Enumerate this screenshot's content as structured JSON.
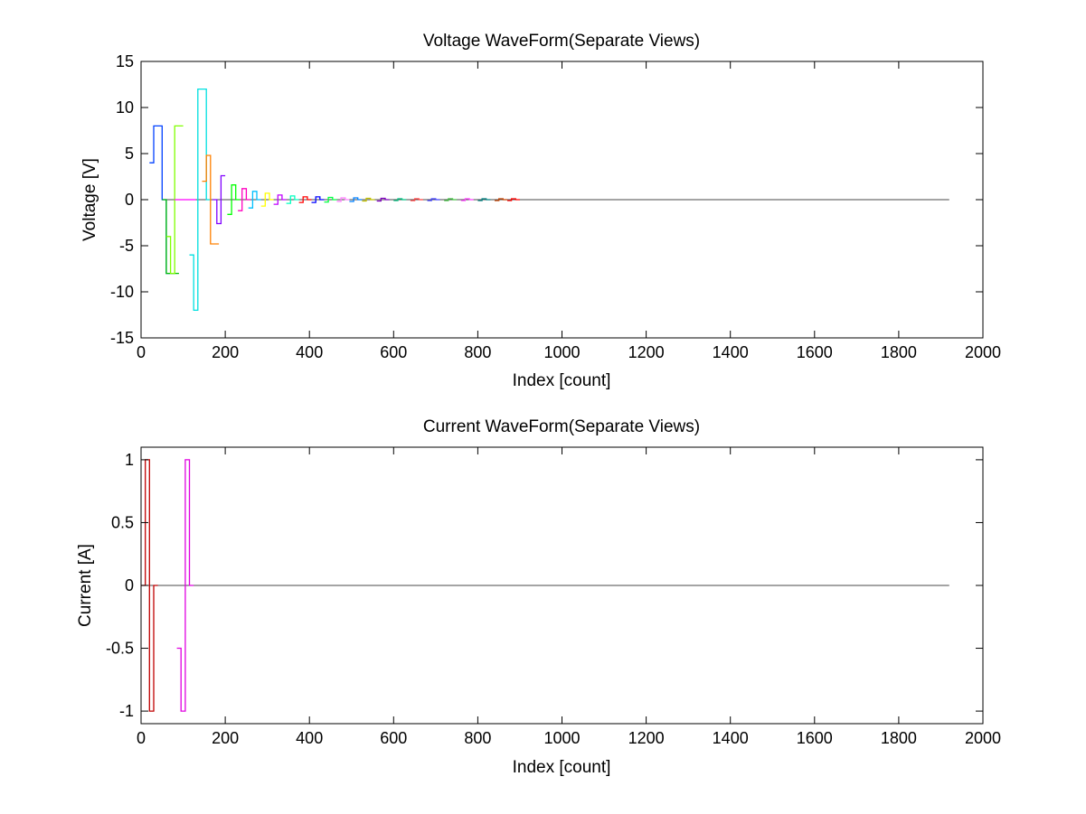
{
  "chart_data": [
    {
      "type": "line",
      "title": "Voltage WaveForm(Separate Views)",
      "xlabel": "Index [count]",
      "ylabel": "Voltage [V]",
      "xlim": [
        0,
        2000
      ],
      "ylim": [
        -15,
        15
      ],
      "xticks": [
        0,
        200,
        400,
        600,
        800,
        1000,
        1200,
        1400,
        1600,
        1800,
        2000
      ],
      "yticks": [
        15,
        10,
        5,
        0,
        -5,
        -10,
        -15
      ],
      "grid": false,
      "legend": "none",
      "step": true,
      "segment_length": 10,
      "series": [
        {
          "color": "#0040ff",
          "x_start": 20,
          "values": [
            4,
            8,
            8,
            0,
            -8,
            -8
          ]
        },
        {
          "color": "#00c000",
          "x_start": 50,
          "values": [
            0,
            -8,
            -8,
            -8
          ]
        },
        {
          "color": "#80ff00",
          "x_start": 60,
          "values": [
            -4,
            -8,
            8,
            8
          ]
        },
        {
          "color": "#ff00ff",
          "x_start": 80,
          "values": [
            0,
            0,
            0,
            0,
            0
          ]
        },
        {
          "color": "#00e0e0",
          "x_start": 115,
          "values": [
            -6,
            -12,
            12,
            12,
            0
          ]
        },
        {
          "color": "#ff8000",
          "x_start": 145,
          "values": [
            2,
            4.8,
            -4.8,
            -4.8
          ]
        },
        {
          "color": "#8000ff",
          "x_start": 170,
          "values": [
            0,
            -2.6,
            2.6
          ]
        },
        {
          "color": "#00ff00",
          "x_start": 205,
          "values": [
            -1.6,
            1.6,
            0
          ]
        },
        {
          "color": "#ff00c0",
          "x_start": 230,
          "values": [
            -1.2,
            1.2,
            0
          ]
        },
        {
          "color": "#00c0ff",
          "x_start": 255,
          "values": [
            -0.9,
            0.9,
            0
          ]
        },
        {
          "color": "#ffff00",
          "x_start": 285,
          "values": [
            -0.7,
            0.7,
            0
          ]
        },
        {
          "color": "#c000ff",
          "x_start": 315,
          "values": [
            -0.5,
            0.5,
            0
          ]
        },
        {
          "color": "#00ffc0",
          "x_start": 345,
          "values": [
            -0.4,
            0.4,
            0
          ]
        },
        {
          "color": "#ff0000",
          "x_start": 375,
          "values": [
            -0.3,
            0.3,
            0
          ]
        },
        {
          "color": "#0000ff",
          "x_start": 405,
          "values": [
            -0.3,
            0.3,
            0
          ]
        },
        {
          "color": "#00ff40",
          "x_start": 435,
          "values": [
            -0.25,
            0.25,
            0
          ]
        },
        {
          "color": "#ff80ff",
          "x_start": 465,
          "values": [
            -0.2,
            0.2,
            0
          ]
        },
        {
          "color": "#0080ff",
          "x_start": 495,
          "values": [
            -0.2,
            0.2,
            0
          ]
        },
        {
          "color": "#c0c000",
          "x_start": 525,
          "values": [
            -0.15,
            0.15,
            0
          ]
        },
        {
          "color": "#8000c0",
          "x_start": 560,
          "values": [
            -0.15,
            0.15,
            0
          ]
        },
        {
          "color": "#00c080",
          "x_start": 600,
          "values": [
            -0.1,
            0.1,
            0
          ]
        },
        {
          "color": "#ff4040",
          "x_start": 640,
          "values": [
            -0.1,
            0.1,
            0
          ]
        },
        {
          "color": "#4040ff",
          "x_start": 680,
          "values": [
            -0.1,
            0.1,
            0
          ]
        },
        {
          "color": "#40c040",
          "x_start": 720,
          "values": [
            -0.1,
            0.1,
            0
          ]
        },
        {
          "color": "#ff40ff",
          "x_start": 760,
          "values": [
            -0.1,
            0.1,
            0
          ]
        },
        {
          "color": "#008080",
          "x_start": 800,
          "values": [
            -0.1,
            0.1,
            0
          ]
        },
        {
          "color": "#c04000",
          "x_start": 840,
          "values": [
            -0.1,
            0.1,
            0
          ]
        },
        {
          "color": "#ff0000",
          "x_start": 870,
          "values": [
            -0.1,
            0.1,
            0
          ]
        }
      ],
      "baseline": {
        "x_from": 60,
        "x_to": 1920,
        "value": 0
      }
    },
    {
      "type": "line",
      "title": "Current WaveForm(Separate Views)",
      "xlabel": "Index [count]",
      "ylabel": "Current [A]",
      "xlim": [
        0,
        2000
      ],
      "ylim": [
        -1.1,
        1.1
      ],
      "xticks": [
        0,
        200,
        400,
        600,
        800,
        1000,
        1200,
        1400,
        1600,
        1800,
        2000
      ],
      "yticks": [
        1,
        0.5,
        0,
        -0.5,
        -1
      ],
      "grid": false,
      "legend": "none",
      "step": true,
      "segment_length": 10,
      "series": [
        {
          "color": "#c00000",
          "x_start": 0,
          "values": [
            0,
            1,
            -1,
            0
          ]
        },
        {
          "color": "#e000e0",
          "x_start": 85,
          "values": [
            -0.5,
            -1,
            1,
            0
          ]
        }
      ],
      "baseline": {
        "x_from": 0,
        "x_to": 1920,
        "value": 0
      }
    }
  ]
}
